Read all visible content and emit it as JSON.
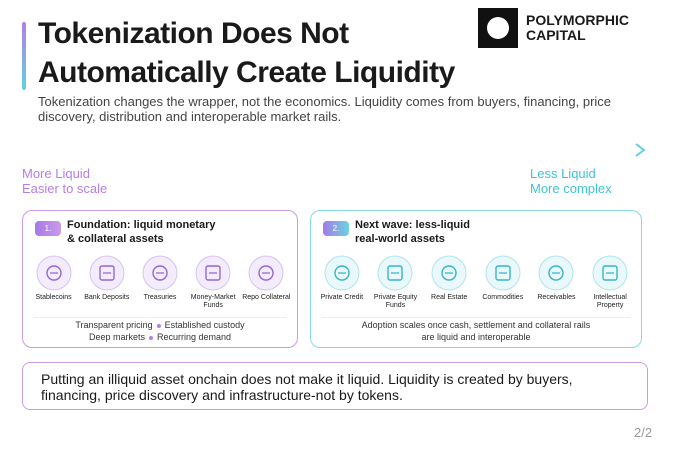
{
  "header": {
    "title_lines": [
      "Tokenization Does Not",
      "Automatically Create Liquidity"
    ],
    "subtitle": "Tokenization changes the wrapper, not the economics. Liquidity comes from buyers, financing, price discovery, distribution and interoperable market rails."
  },
  "logo": {
    "lines": [
      "POLYMORPHIC",
      "CAPITAL"
    ]
  },
  "scale": {
    "left": [
      "More Liquid",
      "Easier to scale"
    ],
    "right": [
      "Less Liquid",
      "More complex"
    ]
  },
  "panels": [
    {
      "badge": "1.",
      "title_lines": [
        "Foundation: liquid monetary",
        "& collateral assets"
      ],
      "items": [
        "Stablecoins",
        "Bank Deposits",
        "Treasuries",
        "Money-Market Funds",
        "Repo Collateral"
      ],
      "notes": [
        [
          "Transparent pricing",
          "Established custody"
        ],
        [
          "Deep markets",
          "Recurring demand"
        ]
      ]
    },
    {
      "badge": "2.",
      "title_lines": [
        "Next wave: less-liquid",
        "real-world assets"
      ],
      "items": [
        "Private Credit",
        "Private Equity Funds",
        "Real Estate",
        "Commodities",
        "Receivables",
        "Intellectual Property"
      ],
      "notes": [
        [
          "Adoption scales once cash, settlement and collateral rails"
        ],
        [
          "are liquid and interoperable"
        ]
      ]
    }
  ],
  "conclusion": "Putting an illiquid asset onchain does not make it liquid. Liquidity is created by buyers, financing, price discovery and infrastructure-not by tokens.",
  "page": "2/2"
}
